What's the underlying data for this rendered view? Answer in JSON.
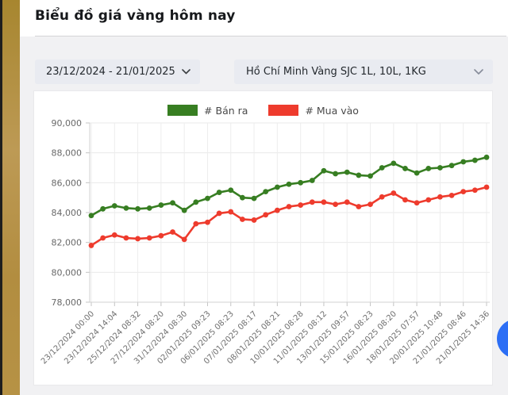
{
  "page": {
    "title": "Biểu đồ giá vàng hôm nay"
  },
  "controls": {
    "date_range": {
      "value": "23/12/2024 - 21/01/2025"
    },
    "market": {
      "value": "Hồ Chí Minh Vàng SJC 1L, 10L, 1KG"
    }
  },
  "legend": [
    {
      "label": "# Bán ra",
      "color": "#377e22"
    },
    {
      "label": "# Mua vào",
      "color": "#ee3b2d"
    }
  ],
  "fab_color": "#2c6ef5",
  "chart_data": {
    "type": "line",
    "title": "Biểu đồ giá vàng hôm nay",
    "xlabel": "",
    "ylabel": "",
    "ylim": [
      78000,
      90000
    ],
    "y_ticks": [
      78000,
      80000,
      82000,
      84000,
      86000,
      88000,
      90000
    ],
    "grid": true,
    "legend_position": "top",
    "x_label_every": 2,
    "x_labels": [
      "23/12/2024 00:00",
      "23/12/2024 14:04",
      "25/12/2024 08:32",
      "27/12/2024 08:20",
      "31/12/2024 08:30",
      "02/01/2025 09:23",
      "06/01/2025 08:23",
      "07/01/2025 08:17",
      "08/01/2025 08:21",
      "10/01/2025 08:28",
      "11/01/2025 08:12",
      "13/01/2025 09:57",
      "15/01/2025 08:23",
      "16/01/2025 08:20",
      "18/01/2025 07:57",
      "20/01/2025 10:48",
      "21/01/2025 08:46",
      "21/01/2025 14:36"
    ],
    "series": [
      {
        "name": "# Bán ra",
        "color": "#377e22",
        "values": [
          83800,
          84250,
          84450,
          84300,
          84250,
          84300,
          84500,
          84650,
          84150,
          84700,
          84950,
          85350,
          85500,
          85000,
          84950,
          85400,
          85700,
          85900,
          86000,
          86150,
          86800,
          86600,
          86700,
          86500,
          86450,
          87000,
          87300,
          86950,
          86650,
          86950,
          87000,
          87150,
          87400,
          87500,
          87700
        ]
      },
      {
        "name": "# Mua vào",
        "color": "#ee3b2d",
        "values": [
          81800,
          82300,
          82500,
          82300,
          82250,
          82300,
          82450,
          82700,
          82200,
          83250,
          83350,
          83950,
          84050,
          83550,
          83500,
          83850,
          84150,
          84400,
          84500,
          84700,
          84700,
          84550,
          84700,
          84400,
          84550,
          85050,
          85300,
          84850,
          84650,
          84850,
          85050,
          85150,
          85400,
          85500,
          85700
        ]
      }
    ]
  }
}
